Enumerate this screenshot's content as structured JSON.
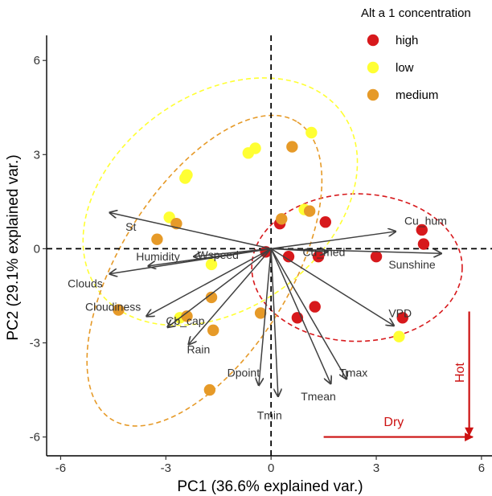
{
  "chart_data": {
    "type": "scatter",
    "xlabel": "PC1 (36.6% explained var.)",
    "ylabel": "PC2 (29.1% explained var.)",
    "xlim": [
      -6.4,
      6.3
    ],
    "ylim": [
      -6.6,
      6.8
    ],
    "xticks": [
      -6,
      -3,
      0,
      3,
      6
    ],
    "yticks": [
      -6,
      -3,
      0,
      3,
      6
    ],
    "xtick_labels": [
      "-6",
      "-3",
      "0",
      "3",
      "6"
    ],
    "ytick_labels": [
      "-6",
      "-3",
      "0",
      "3",
      "6"
    ],
    "grid": false,
    "legend": {
      "title": "Alt a 1 concentration",
      "position": "top-right",
      "entries": [
        "high",
        "low",
        "medium"
      ]
    },
    "colors": {
      "high": "#d7191c",
      "low": "#ffff33",
      "medium": "#e69a28",
      "arrow": "#404040",
      "annotation": "#cc1111"
    },
    "series": [
      {
        "name": "high",
        "points": [
          [
            0.25,
            0.8
          ],
          [
            1.55,
            0.85
          ],
          [
            4.3,
            0.6
          ],
          [
            4.35,
            0.15
          ],
          [
            -0.15,
            -0.1
          ],
          [
            0.5,
            -0.25
          ],
          [
            1.35,
            -0.25
          ],
          [
            3.0,
            -0.25
          ],
          [
            1.25,
            -1.85
          ],
          [
            0.75,
            -2.2
          ],
          [
            3.75,
            -2.2
          ]
        ],
        "ellipse": {
          "cx": 2.45,
          "cy": -0.6,
          "rx": 3.0,
          "ry": 2.35,
          "angle": 0
        }
      },
      {
        "name": "low",
        "points": [
          [
            1.15,
            3.7
          ],
          [
            -0.45,
            3.2
          ],
          [
            -0.65,
            3.05
          ],
          [
            -2.4,
            2.35
          ],
          [
            -2.45,
            2.25
          ],
          [
            0.95,
            1.25
          ],
          [
            -2.9,
            1.0
          ],
          [
            -1.7,
            -0.5
          ],
          [
            -2.6,
            -2.2
          ],
          [
            3.65,
            -2.8
          ]
        ],
        "ellipse": {
          "cx": -1.45,
          "cy": 1.5,
          "rx": 4.3,
          "ry": 3.4,
          "angle": -36
        }
      },
      {
        "name": "medium",
        "points": [
          [
            0.6,
            3.25
          ],
          [
            0.3,
            0.95
          ],
          [
            1.1,
            1.2
          ],
          [
            -2.7,
            0.8
          ],
          [
            -3.25,
            0.3
          ],
          [
            -1.7,
            -1.55
          ],
          [
            -0.3,
            -2.05
          ],
          [
            -4.35,
            -1.95
          ],
          [
            -2.4,
            -2.15
          ],
          [
            -1.65,
            -2.6
          ],
          [
            -1.75,
            -4.5
          ]
        ],
        "ellipse": {
          "cx": -1.9,
          "cy": -0.7,
          "rx": 5.0,
          "ry": 2.7,
          "angle": -58
        }
      }
    ],
    "loadings": [
      {
        "name": "Cu_hum",
        "end": [
          3.55,
          0.55
        ],
        "label": [
          3.8,
          0.9
        ]
      },
      {
        "name": "Sunshine",
        "end": [
          4.85,
          -0.15
        ],
        "label": [
          3.35,
          -0.5
        ]
      },
      {
        "name": "Cu_med",
        "end": [
          1.6,
          -0.1
        ],
        "label": [
          0.9,
          -0.1
        ]
      },
      {
        "name": "VPD",
        "end": [
          3.5,
          -2.45
        ],
        "label": [
          3.35,
          -2.05
        ]
      },
      {
        "name": "St",
        "end": [
          -4.6,
          1.15
        ],
        "label": [
          -4.15,
          0.7
        ]
      },
      {
        "name": "Wspeed",
        "end": [
          -2.2,
          -0.25
        ],
        "label": [
          -2.1,
          -0.2
        ]
      },
      {
        "name": "Humidity",
        "end": [
          -3.5,
          -0.55
        ],
        "label": [
          -3.85,
          -0.25
        ]
      },
      {
        "name": "Clouds",
        "end": [
          -4.6,
          -0.8
        ],
        "label": [
          -5.8,
          -1.1
        ]
      },
      {
        "name": "Cloudiness",
        "end": [
          -3.55,
          -2.15
        ],
        "label": [
          -5.3,
          -1.85
        ]
      },
      {
        "name": "Cb_cap",
        "end": [
          -2.95,
          -2.5
        ],
        "label": [
          -3.0,
          -2.3
        ]
      },
      {
        "name": "Rain",
        "end": [
          -2.35,
          -3.05
        ],
        "label": [
          -2.4,
          -3.2
        ]
      },
      {
        "name": "Dpoint",
        "end": [
          -0.35,
          -4.35
        ],
        "label": [
          -1.25,
          -3.95
        ]
      },
      {
        "name": "Tmin",
        "end": [
          0.2,
          -4.7
        ],
        "label": [
          -0.4,
          -5.3
        ]
      },
      {
        "name": "Tmean",
        "end": [
          1.7,
          -4.3
        ],
        "label": [
          0.85,
          -4.7
        ]
      },
      {
        "name": "Tmax",
        "end": [
          2.15,
          -4.15
        ],
        "label": [
          1.95,
          -3.95
        ]
      }
    ],
    "annotations": [
      {
        "text": "Dry",
        "direction": "right",
        "from": [
          1.5,
          -6.0
        ],
        "to": [
          5.75,
          -6.0
        ],
        "label": [
          3.5,
          -5.65
        ]
      },
      {
        "text": "Hot",
        "direction": "down",
        "from": [
          5.65,
          -2.0
        ],
        "to": [
          5.65,
          -5.95
        ],
        "label": [
          5.5,
          -3.95
        ]
      }
    ]
  }
}
